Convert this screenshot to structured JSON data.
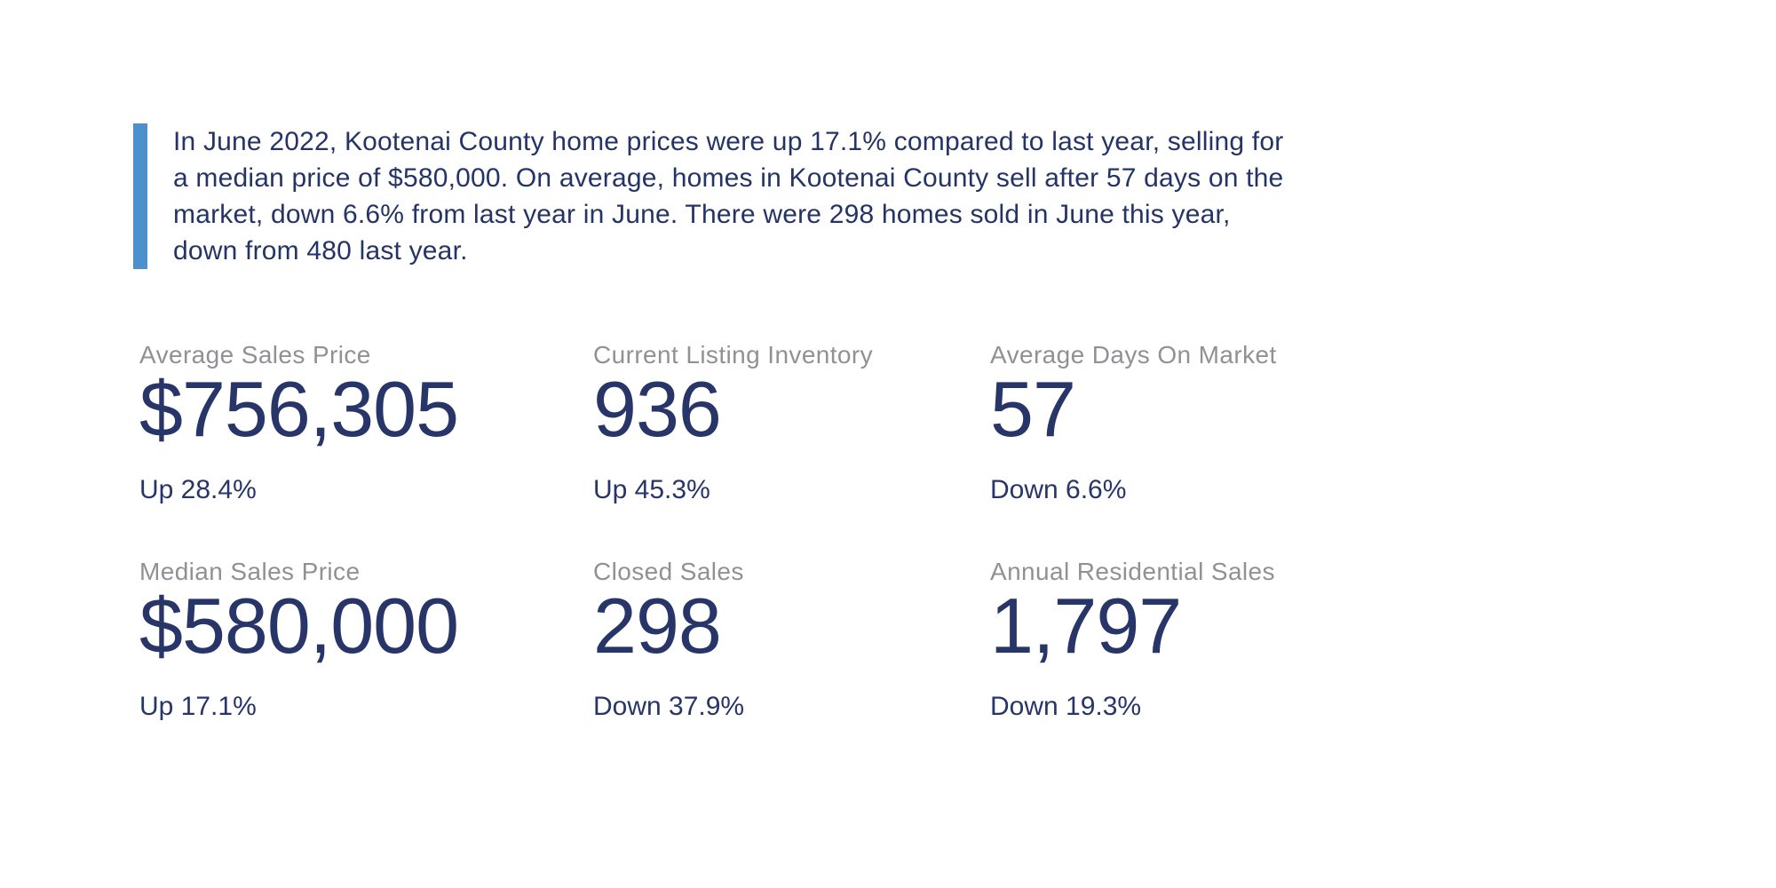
{
  "summary": {
    "text": "In June 2022, Kootenai County home prices were up 17.1% compared to last year, selling for a median price of $580,000. On average, homes in Kootenai County sell after 57 days on the market, down 6.6% from last year in June. There were 298 homes sold in June this year, down from 480 last year."
  },
  "stats": [
    {
      "label": "Average Sales Price",
      "value": "$756,305",
      "change": "Up 28.4%"
    },
    {
      "label": "Current Listing Inventory",
      "value": "936",
      "change": "Up 45.3%"
    },
    {
      "label": "Average Days On Market",
      "value": "57",
      "change": "Down 6.6%"
    },
    {
      "label": "Median Sales Price",
      "value": "$580,000",
      "change": "Up 17.1%"
    },
    {
      "label": "Closed Sales",
      "value": "298",
      "change": "Down 37.9%"
    },
    {
      "label": "Annual Residential Sales",
      "value": "1,797",
      "change": "Down 19.3%"
    }
  ],
  "colors": {
    "navy_text": "#273569",
    "label_gray": "#8f9194",
    "accent_blue": "#4d90ce",
    "background": "#ffffff"
  }
}
